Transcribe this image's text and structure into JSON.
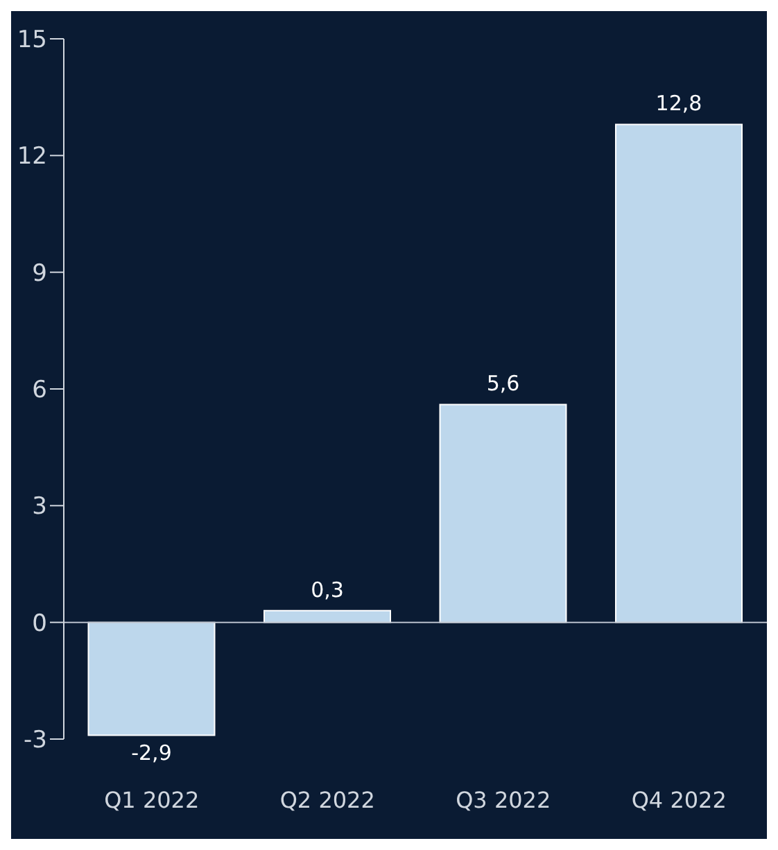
{
  "chart_data": {
    "type": "bar",
    "categories": [
      "Q1 2022",
      "Q2 2022",
      "Q3 2022",
      "Q4 2022"
    ],
    "values": [
      -2.9,
      0.3,
      5.6,
      12.8
    ],
    "value_labels": [
      "-2,9",
      "0,3",
      "5,6",
      "12,8"
    ],
    "color": "#bdd7ec",
    "ylim": [
      -3,
      15
    ],
    "yticks": [
      -3,
      0,
      3,
      6,
      9,
      12,
      15
    ]
  }
}
